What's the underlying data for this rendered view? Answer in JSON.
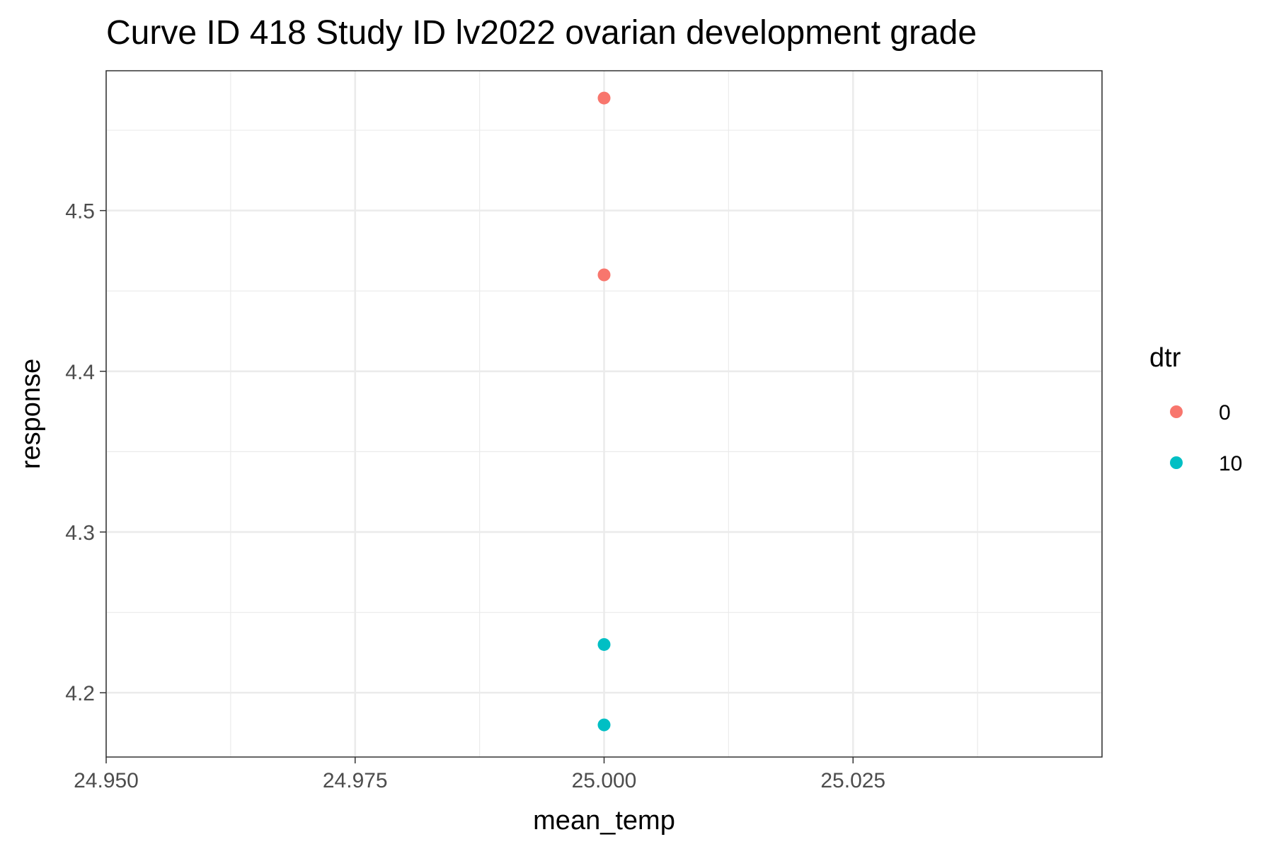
{
  "chart_data": {
    "type": "scatter",
    "title": "Curve ID 418 Study ID lv2022 ovarian development grade",
    "xlabel": "mean_temp",
    "ylabel": "response",
    "xlim": [
      24.95,
      25.05
    ],
    "ylim": [
      4.16,
      4.587
    ],
    "x_ticks": [
      24.95,
      24.975,
      25.0,
      25.025
    ],
    "x_tick_labels": [
      "24.950",
      "24.975",
      "25.000",
      "25.025"
    ],
    "y_ticks": [
      4.2,
      4.3,
      4.4,
      4.5
    ],
    "y_tick_labels": [
      "4.2",
      "4.3",
      "4.4",
      "4.5"
    ],
    "grid": true,
    "legend": {
      "title": "dtr",
      "placement": "right",
      "entries": [
        {
          "label": "0",
          "color": "#F8766D"
        },
        {
          "label": "10",
          "color": "#00BFC4"
        }
      ]
    },
    "series": [
      {
        "name": "0",
        "color": "#F8766D",
        "points": [
          {
            "x": 25.0,
            "y": 4.57
          },
          {
            "x": 25.0,
            "y": 4.46
          }
        ]
      },
      {
        "name": "10",
        "color": "#00BFC4",
        "points": [
          {
            "x": 25.0,
            "y": 4.23
          },
          {
            "x": 25.0,
            "y": 4.18
          }
        ]
      }
    ]
  }
}
